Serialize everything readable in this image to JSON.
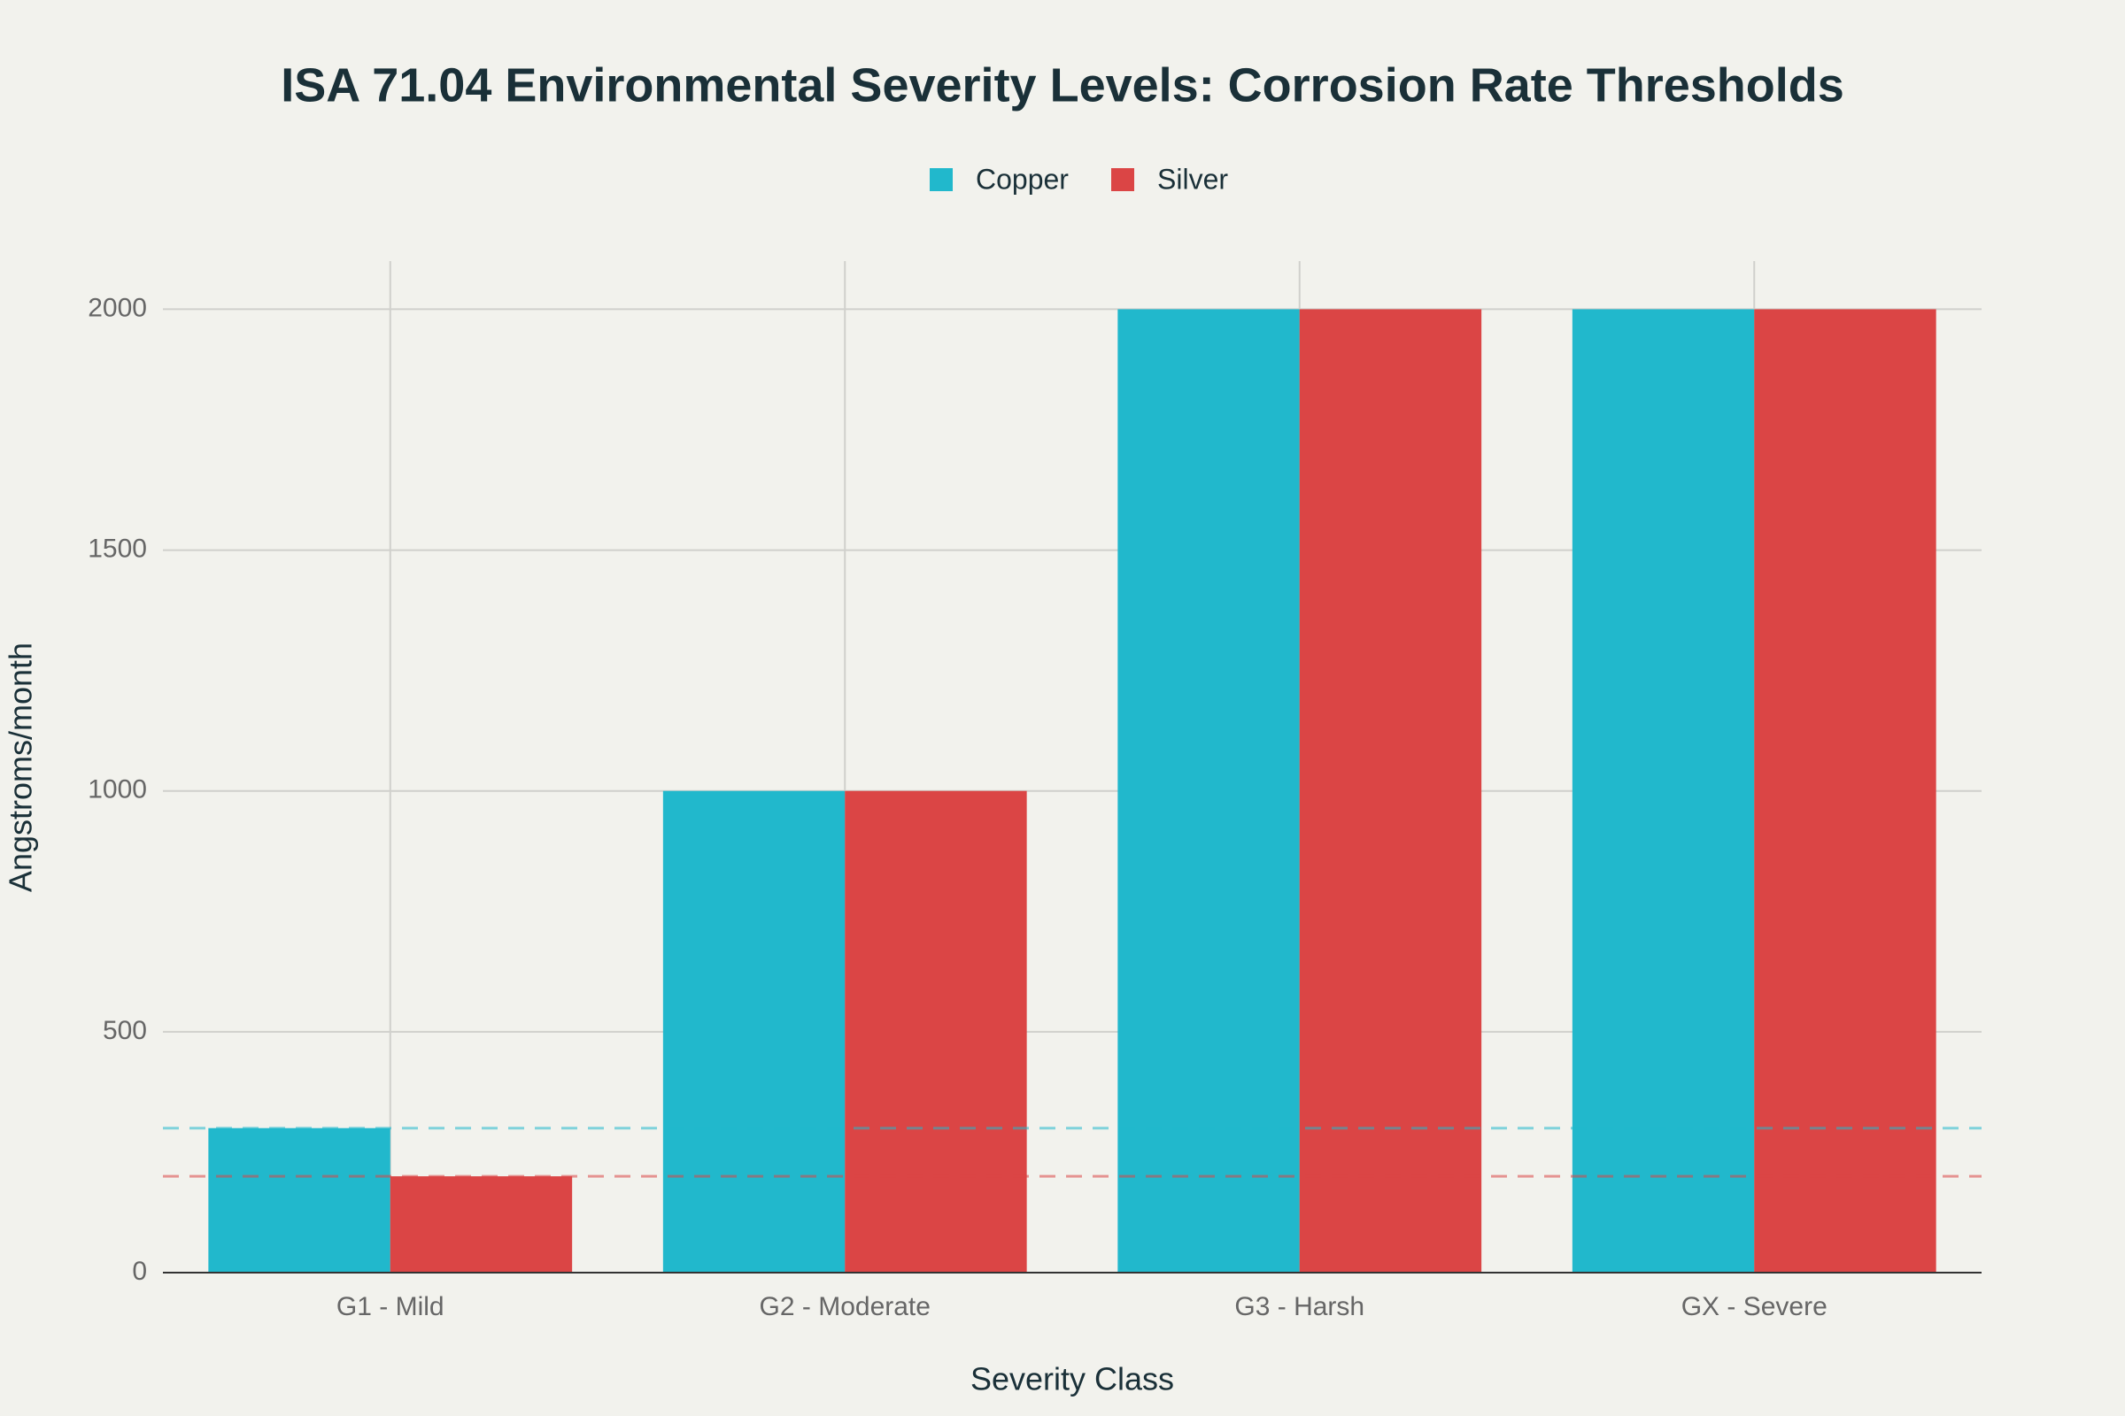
{
  "chart_data": {
    "type": "bar",
    "title": "ISA 71.04 Environmental Severity Levels: Corrosion Rate Thresholds",
    "x_label": "Severity Class",
    "y_label": "Angstroms/month",
    "categories": [
      "G1 - Mild",
      "G2 - Moderate",
      "G3 - Harsh",
      "GX - Severe"
    ],
    "series": [
      {
        "name": "Copper",
        "color": "#21b8cc",
        "values": [
          300,
          1000,
          2000,
          2000
        ]
      },
      {
        "name": "Silver",
        "color": "#db4545",
        "values": [
          200,
          1000,
          2000,
          2000
        ]
      }
    ],
    "reference_lines": [
      {
        "value": 300,
        "color": "#21b8cc"
      },
      {
        "value": 200,
        "color": "#db4545"
      }
    ],
    "ylim": [
      0,
      2100
    ],
    "yticks": [
      0,
      500,
      1000,
      1500,
      2000
    ],
    "grid": true,
    "legend": "top"
  }
}
